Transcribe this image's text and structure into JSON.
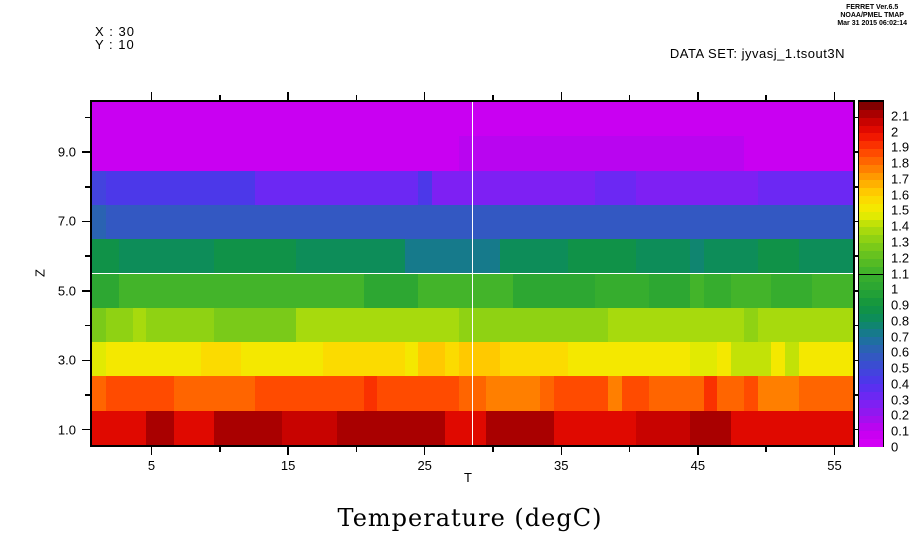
{
  "header": {
    "stamp_line1": "FERRET Ver.6.5",
    "stamp_line2": "NOAA/PMEL TMAP",
    "stamp_line3": "Mar 31 2015 06:02:14",
    "x_index": "X : 30",
    "y_index": "Y : 10",
    "dataset": "DATA SET: jyvasj_1.tsout3N"
  },
  "chart_data": {
    "type": "heatmap",
    "title": "Temperature (degC)",
    "xlabel": "T",
    "ylabel": "Z",
    "columns": 56,
    "rows": 10,
    "x_extent": [
      0.5,
      56.5
    ],
    "z_extent": [
      0.5,
      10.5
    ],
    "grid": false,
    "x_ticks": {
      "major": [
        {
          "value": 5,
          "label": "5"
        },
        {
          "value": 15,
          "label": "15"
        },
        {
          "value": 25,
          "label": "25"
        },
        {
          "value": 35,
          "label": "35"
        },
        {
          "value": 45,
          "label": "45"
        },
        {
          "value": 55,
          "label": "55"
        }
      ],
      "minor": [
        10,
        20,
        30,
        40,
        50
      ]
    },
    "y_ticks": {
      "major": [
        {
          "value": 1,
          "label": "1.0"
        },
        {
          "value": 3,
          "label": "3.0"
        },
        {
          "value": 5,
          "label": "5.0"
        },
        {
          "value": 7,
          "label": "7.0"
        },
        {
          "value": 9,
          "label": "9.0"
        }
      ],
      "minor": [
        2,
        4,
        6,
        8,
        10
      ]
    },
    "colorbar": {
      "position": "right",
      "range": [
        0,
        2.2
      ],
      "cell_step": 0.05,
      "labels": [
        {
          "value": 2.1,
          "label": "2.1"
        },
        {
          "value": 2.0,
          "label": "2"
        },
        {
          "value": 1.9,
          "label": "1.9"
        },
        {
          "value": 1.8,
          "label": "1.8"
        },
        {
          "value": 1.7,
          "label": "1.7"
        },
        {
          "value": 1.6,
          "label": "1.6"
        },
        {
          "value": 1.5,
          "label": "1.5"
        },
        {
          "value": 1.4,
          "label": "1.4"
        },
        {
          "value": 1.3,
          "label": "1.3"
        },
        {
          "value": 1.2,
          "label": "1.2"
        },
        {
          "value": 1.1,
          "label": "1.1"
        },
        {
          "value": 1.0,
          "label": "1"
        },
        {
          "value": 0.9,
          "label": "0.9"
        },
        {
          "value": 0.8,
          "label": "0.8"
        },
        {
          "value": 0.7,
          "label": "0.7"
        },
        {
          "value": 0.6,
          "label": "0.6"
        },
        {
          "value": 0.5,
          "label": "0.5"
        },
        {
          "value": 0.4,
          "label": "0.4"
        },
        {
          "value": 0.3,
          "label": "0.3"
        },
        {
          "value": 0.2,
          "label": "0.2"
        },
        {
          "value": 0.1,
          "label": "0.1"
        },
        {
          "value": 0.0,
          "label": "0"
        }
      ],
      "palette_anchors": [
        [
          0.0,
          "#D800F8"
        ],
        [
          0.1,
          "#C400F0"
        ],
        [
          0.2,
          "#9914EE"
        ],
        [
          0.3,
          "#7524F4"
        ],
        [
          0.4,
          "#5133EE"
        ],
        [
          0.5,
          "#3E48D8"
        ],
        [
          0.6,
          "#2F5DBB"
        ],
        [
          0.7,
          "#1A7599"
        ],
        [
          0.8,
          "#0C8A62"
        ],
        [
          0.9,
          "#119440"
        ],
        [
          1.0,
          "#28A434"
        ],
        [
          1.1,
          "#3BB02C"
        ],
        [
          1.2,
          "#5DBE22"
        ],
        [
          1.3,
          "#84CE16"
        ],
        [
          1.4,
          "#B2DE0A"
        ],
        [
          1.5,
          "#F0EE00"
        ],
        [
          1.6,
          "#FFD400"
        ],
        [
          1.7,
          "#FFA600"
        ],
        [
          1.8,
          "#FF7200"
        ],
        [
          1.9,
          "#FF3E00"
        ],
        [
          2.0,
          "#EC0C00"
        ],
        [
          2.1,
          "#BC0000"
        ],
        [
          2.2,
          "#700000"
        ]
      ]
    },
    "values_row_order": "Z=1 (bottom) to Z=10 (top), 56 columns T=1..56",
    "values": [
      [
        2.0,
        2.0,
        2.0,
        2.0,
        2.1,
        2.15,
        2.05,
        2.05,
        2.05,
        2.1,
        2.1,
        2.1,
        2.1,
        2.1,
        2.07,
        2.07,
        2.07,
        2.07,
        2.12,
        2.12,
        2.12,
        2.12,
        2.15,
        2.1,
        2.1,
        2.1,
        2.05,
        2.05,
        2.05,
        2.12,
        2.15,
        2.15,
        2.15,
        2.1,
        2.0,
        2.0,
        2.0,
        2.0,
        2.05,
        2.05,
        2.07,
        2.07,
        2.07,
        2.07,
        2.15,
        2.15,
        2.1,
        2.0,
        2.0,
        2.0,
        2.0,
        2.0,
        2.05,
        2.02,
        2.02,
        2.02
      ],
      [
        1.8,
        1.85,
        1.85,
        1.85,
        1.85,
        1.85,
        1.82,
        1.82,
        1.82,
        1.82,
        1.82,
        1.82,
        1.87,
        1.9,
        1.9,
        1.9,
        1.9,
        1.85,
        1.85,
        1.87,
        1.92,
        1.9,
        1.9,
        1.9,
        1.85,
        1.85,
        1.85,
        1.8,
        1.8,
        1.78,
        1.78,
        1.78,
        1.78,
        1.82,
        1.85,
        1.85,
        1.85,
        1.85,
        1.75,
        1.85,
        1.85,
        1.82,
        1.82,
        1.82,
        1.82,
        1.92,
        1.8,
        1.8,
        1.85,
        1.78,
        1.78,
        1.78,
        1.82,
        1.82,
        1.82,
        1.82
      ],
      [
        1.48,
        1.52,
        1.52,
        1.52,
        1.52,
        1.52,
        1.52,
        1.52,
        1.58,
        1.58,
        1.58,
        1.52,
        1.52,
        1.52,
        1.52,
        1.52,
        1.52,
        1.57,
        1.57,
        1.57,
        1.57,
        1.57,
        1.57,
        1.52,
        1.6,
        1.6,
        1.55,
        1.62,
        1.62,
        1.62,
        1.57,
        1.57,
        1.57,
        1.57,
        1.57,
        1.52,
        1.52,
        1.52,
        1.52,
        1.52,
        1.52,
        1.52,
        1.52,
        1.52,
        1.47,
        1.47,
        1.52,
        1.45,
        1.45,
        1.45,
        1.5,
        1.45,
        1.52,
        1.52,
        1.52,
        1.52
      ],
      [
        1.27,
        1.3,
        1.3,
        1.35,
        1.32,
        1.32,
        1.32,
        1.32,
        1.32,
        1.28,
        1.28,
        1.28,
        1.28,
        1.28,
        1.28,
        1.35,
        1.35,
        1.35,
        1.35,
        1.35,
        1.35,
        1.35,
        1.35,
        1.35,
        1.35,
        1.35,
        1.35,
        1.3,
        1.3,
        1.3,
        1.3,
        1.3,
        1.3,
        1.3,
        1.32,
        1.32,
        1.32,
        1.32,
        1.35,
        1.35,
        1.35,
        1.35,
        1.38,
        1.38,
        1.38,
        1.38,
        1.38,
        1.38,
        1.3,
        1.38,
        1.38,
        1.38,
        1.38,
        1.38,
        1.38,
        1.35
      ],
      [
        1.03,
        1.03,
        1.1,
        1.1,
        1.1,
        1.1,
        1.1,
        1.1,
        1.1,
        1.1,
        1.1,
        1.1,
        1.1,
        1.12,
        1.12,
        1.12,
        1.12,
        1.12,
        1.12,
        1.12,
        1.03,
        1.03,
        1.03,
        1.03,
        1.1,
        1.1,
        1.1,
        1.1,
        1.1,
        1.1,
        1.1,
        1.03,
        1.03,
        1.03,
        1.03,
        1.03,
        1.03,
        1.08,
        1.08,
        1.08,
        1.08,
        1.03,
        1.03,
        1.03,
        1.15,
        1.08,
        1.08,
        1.12,
        1.12,
        1.12,
        1.08,
        1.08,
        1.08,
        1.12,
        1.12,
        1.12
      ],
      [
        0.85,
        0.85,
        0.82,
        0.82,
        0.82,
        0.82,
        0.82,
        0.82,
        0.82,
        0.85,
        0.85,
        0.85,
        0.85,
        0.85,
        0.85,
        0.82,
        0.82,
        0.82,
        0.82,
        0.82,
        0.82,
        0.82,
        0.82,
        0.73,
        0.73,
        0.73,
        0.73,
        0.73,
        0.73,
        0.73,
        0.82,
        0.82,
        0.82,
        0.82,
        0.82,
        0.85,
        0.85,
        0.85,
        0.85,
        0.85,
        0.82,
        0.82,
        0.82,
        0.82,
        0.78,
        0.82,
        0.82,
        0.82,
        0.82,
        0.85,
        0.85,
        0.85,
        0.82,
        0.82,
        0.82,
        0.82
      ],
      [
        0.62,
        0.58,
        0.58,
        0.58,
        0.58,
        0.58,
        0.58,
        0.58,
        0.58,
        0.58,
        0.58,
        0.58,
        0.58,
        0.58,
        0.58,
        0.58,
        0.58,
        0.58,
        0.58,
        0.58,
        0.58,
        0.58,
        0.58,
        0.58,
        0.58,
        0.58,
        0.58,
        0.55,
        0.55,
        0.55,
        0.55,
        0.55,
        0.55,
        0.55,
        0.55,
        0.55,
        0.55,
        0.55,
        0.55,
        0.55,
        0.55,
        0.55,
        0.55,
        0.55,
        0.55,
        0.58,
        0.58,
        0.58,
        0.55,
        0.55,
        0.55,
        0.55,
        0.58,
        0.58,
        0.58,
        0.58
      ],
      [
        0.45,
        0.42,
        0.42,
        0.42,
        0.42,
        0.42,
        0.42,
        0.42,
        0.42,
        0.42,
        0.42,
        0.42,
        0.32,
        0.32,
        0.32,
        0.32,
        0.32,
        0.32,
        0.32,
        0.32,
        0.32,
        0.32,
        0.32,
        0.32,
        0.42,
        0.28,
        0.28,
        0.28,
        0.28,
        0.28,
        0.28,
        0.28,
        0.28,
        0.28,
        0.28,
        0.28,
        0.28,
        0.33,
        0.33,
        0.33,
        0.27,
        0.27,
        0.27,
        0.27,
        0.3,
        0.3,
        0.3,
        0.3,
        0.3,
        0.33,
        0.33,
        0.33,
        0.33,
        0.33,
        0.33,
        0.33
      ],
      [
        0.08,
        0.08,
        0.08,
        0.08,
        0.08,
        0.08,
        0.08,
        0.08,
        0.08,
        0.08,
        0.08,
        0.08,
        0.08,
        0.08,
        0.08,
        0.08,
        0.08,
        0.08,
        0.08,
        0.08,
        0.08,
        0.08,
        0.08,
        0.08,
        0.08,
        0.08,
        0.08,
        0.13,
        0.13,
        0.13,
        0.13,
        0.13,
        0.13,
        0.13,
        0.13,
        0.13,
        0.13,
        0.13,
        0.13,
        0.13,
        0.13,
        0.13,
        0.13,
        0.13,
        0.13,
        0.13,
        0.13,
        0.13,
        0.08,
        0.08,
        0.08,
        0.08,
        0.08,
        0.08,
        0.08,
        0.08
      ],
      [
        0.05,
        0.05,
        0.05,
        0.05,
        0.05,
        0.05,
        0.05,
        0.05,
        0.05,
        0.05,
        0.05,
        0.05,
        0.05,
        0.05,
        0.05,
        0.05,
        0.05,
        0.05,
        0.05,
        0.05,
        0.05,
        0.05,
        0.05,
        0.05,
        0.05,
        0.05,
        0.05,
        0.05,
        0.05,
        0.05,
        0.05,
        0.05,
        0.05,
        0.05,
        0.05,
        0.05,
        0.05,
        0.05,
        0.05,
        0.05,
        0.05,
        0.05,
        0.05,
        0.05,
        0.05,
        0.05,
        0.05,
        0.05,
        0.05,
        0.05,
        0.05,
        0.05,
        0.05,
        0.05,
        0.05,
        0.05
      ]
    ]
  }
}
